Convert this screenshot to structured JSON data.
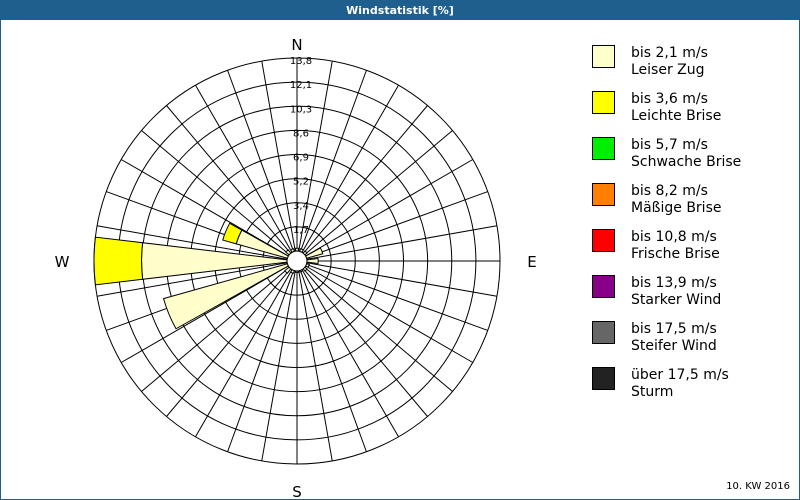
{
  "title": "Windstatistik [%]",
  "footer": "10. KW 2016",
  "colors": {
    "grid": "#000000",
    "title_bar": "#1f5f8e"
  },
  "chart_data": {
    "type": "polar-bar",
    "directions": [
      "N",
      "E",
      "S",
      "W"
    ],
    "ring_ticks": [
      "1,7",
      "3,4",
      "5,2",
      "6,9",
      "8,6",
      "10,3",
      "12,1",
      "13,8"
    ],
    "r_max": 13.8,
    "sectors": 16,
    "speed_classes": [
      {
        "range": "bis 2,1 m/s",
        "name": "Leiser Zug",
        "color": "#ffffcc"
      },
      {
        "range": "bis 3,6 m/s",
        "name": "Leichte Brise",
        "color": "#ffff00"
      },
      {
        "range": "bis 5,7 m/s",
        "name": "Schwache Brise",
        "color": "#00ee00"
      },
      {
        "range": "bis 8,2 m/s",
        "name": "Mäßige Brise",
        "color": "#ff8000"
      },
      {
        "range": "bis 10,8 m/s",
        "name": "Frische Brise",
        "color": "#ff0000"
      },
      {
        "range": "bis 13,9 m/s",
        "name": "Starker Wind",
        "color": "#880088"
      },
      {
        "range": "bis 17,5 m/s",
        "name": "Steifer Wind",
        "color": "#666666"
      },
      {
        "range": "über 17,5 m/s",
        "name": "Sturm",
        "color": "#222222"
      }
    ],
    "bars": [
      {
        "angle_deg": 0,
        "values": [
          0.2,
          0.0
        ]
      },
      {
        "angle_deg": 22.5,
        "values": [
          0.2,
          0.0
        ]
      },
      {
        "angle_deg": 45,
        "values": [
          0.2,
          0.0
        ]
      },
      {
        "angle_deg": 67.5,
        "values": [
          1.2,
          0.0
        ]
      },
      {
        "angle_deg": 90,
        "values": [
          0.8,
          0.0
        ]
      },
      {
        "angle_deg": 112.5,
        "values": [
          0.2,
          0.0
        ]
      },
      {
        "angle_deg": 135,
        "values": [
          0.2,
          0.0
        ]
      },
      {
        "angle_deg": 157.5,
        "values": [
          0.1,
          0.0
        ]
      },
      {
        "angle_deg": 180,
        "values": [
          0.1,
          0.0
        ]
      },
      {
        "angle_deg": 202.5,
        "values": [
          0.2,
          0.0
        ]
      },
      {
        "angle_deg": 225,
        "values": [
          0.4,
          0.0
        ]
      },
      {
        "angle_deg": 247.5,
        "values": [
          9.2,
          0.0
        ]
      },
      {
        "angle_deg": 270,
        "values": [
          10.4,
          3.4
        ]
      },
      {
        "angle_deg": 292.5,
        "values": [
          3.8,
          1.0
        ]
      },
      {
        "angle_deg": 315,
        "values": [
          0.3,
          0.0
        ]
      },
      {
        "angle_deg": 337.5,
        "values": [
          0.2,
          0.0
        ]
      }
    ]
  }
}
